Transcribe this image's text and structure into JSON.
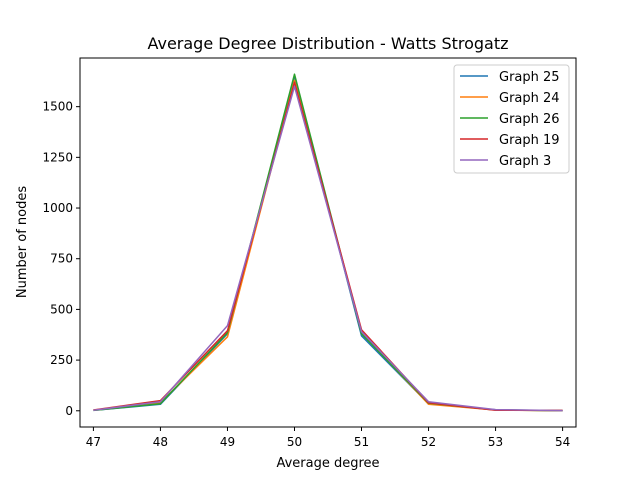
{
  "chart_data": {
    "type": "line",
    "title": "Average Degree Distribution - Watts Strogatz",
    "xlabel": "Average degree",
    "ylabel": "Number of nodes",
    "x": [
      47,
      48,
      49,
      50,
      51,
      52,
      53,
      54
    ],
    "xlim": [
      46.8,
      54.2
    ],
    "ylim": [
      -80,
      1740
    ],
    "yticks": [
      0,
      250,
      500,
      750,
      1000,
      1250,
      1500
    ],
    "grid": false,
    "legend_position": "top-right",
    "series": [
      {
        "name": "Graph 25",
        "color": "#1f77b4",
        "values": [
          2,
          32,
          380,
          1650,
          370,
          35,
          5,
          1
        ]
      },
      {
        "name": "Graph 24",
        "color": "#ff7f0e",
        "values": [
          3,
          40,
          365,
          1630,
          385,
          32,
          4,
          0
        ]
      },
      {
        "name": "Graph 26",
        "color": "#2ca02c",
        "values": [
          2,
          35,
          385,
          1660,
          380,
          38,
          4,
          1
        ]
      },
      {
        "name": "Graph 19",
        "color": "#d62728",
        "values": [
          4,
          50,
          395,
          1620,
          400,
          40,
          3,
          2
        ]
      },
      {
        "name": "Graph 3",
        "color": "#9467bd",
        "values": [
          3,
          45,
          420,
          1600,
          390,
          45,
          6,
          1
        ]
      }
    ]
  }
}
